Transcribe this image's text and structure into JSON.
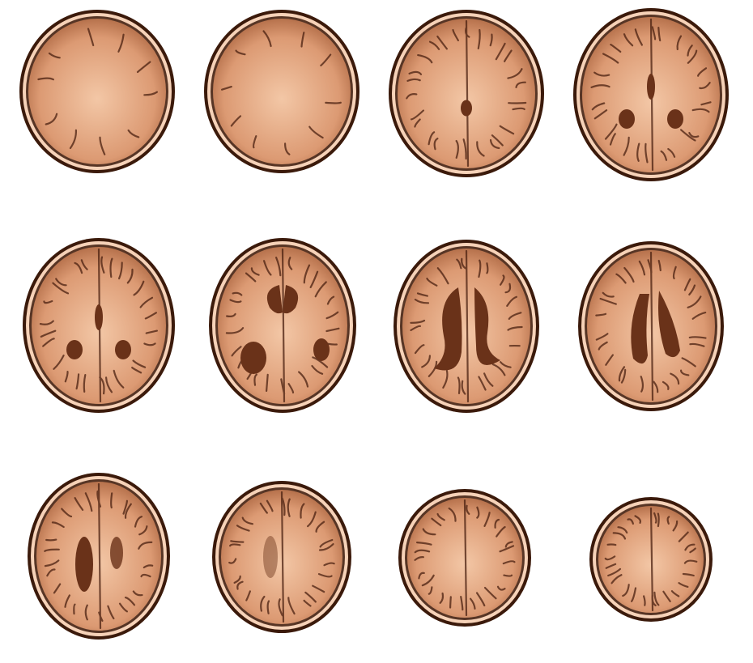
{
  "montage": {
    "colors": {
      "background": "#ffffff",
      "skull_outer": "#3b1a0b",
      "skull_inner": "#f6d2b8",
      "tissue_light": "#f3c7a6",
      "tissue_mid": "#dc9a73",
      "tissue_dark": "#a8623d",
      "ventricle": "#6a3219",
      "sulcus": "#4a2010"
    },
    "slices": [
      {
        "row": 1,
        "col": 1,
        "kind": "skull-base",
        "ventricle": "none"
      },
      {
        "row": 1,
        "col": 2,
        "kind": "skull-base",
        "ventricle": "none"
      },
      {
        "row": 1,
        "col": 3,
        "kind": "cerebellum",
        "ventricle": "fourth"
      },
      {
        "row": 1,
        "col": 4,
        "kind": "midbrain",
        "ventricle": "small"
      },
      {
        "row": 2,
        "col": 1,
        "kind": "basal-ganglia",
        "ventricle": "small"
      },
      {
        "row": 2,
        "col": 2,
        "kind": "frontal-horns",
        "ventricle": "frontal-horns"
      },
      {
        "row": 2,
        "col": 3,
        "kind": "lateral-ventricles",
        "ventricle": "lateral"
      },
      {
        "row": 2,
        "col": 4,
        "kind": "body-ventricles",
        "ventricle": "body"
      },
      {
        "row": 3,
        "col": 1,
        "kind": "centrum-semiovale",
        "ventricle": "upper-body"
      },
      {
        "row": 3,
        "col": 2,
        "kind": "high-convexity",
        "ventricle": "faint"
      },
      {
        "row": 3,
        "col": 3,
        "kind": "vertex",
        "ventricle": "none"
      },
      {
        "row": 3,
        "col": 4,
        "kind": "vertex-top",
        "ventricle": "none"
      }
    ]
  }
}
